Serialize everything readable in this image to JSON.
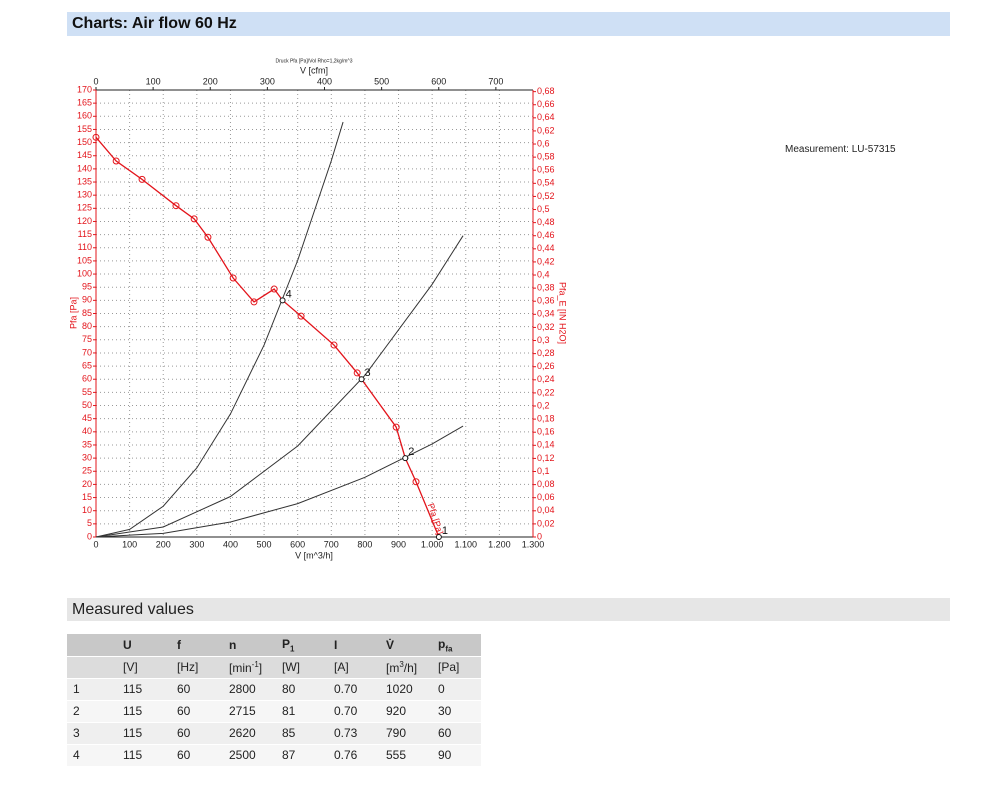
{
  "header": {
    "title": "Charts: Air flow 60 Hz"
  },
  "measurement": "Measurement: LU-57315",
  "chart_data": {
    "type": "line",
    "title": "Druck Pfa [Pa]/Vol Rho=1,2kg/m^3",
    "x_label": "V [m^3/h]",
    "x2_label": "V [cfm]",
    "y_label": "Pfa [Pa]",
    "y2_label": "Pfa_E [IN H2O]",
    "xlim": [
      0,
      1300
    ],
    "xticks": [
      0,
      100,
      200,
      300,
      400,
      500,
      600,
      700,
      800,
      900,
      {
        "value": 1000,
        "label": "1.000"
      },
      {
        "value": 1100,
        "label": "1.100"
      },
      {
        "value": 1200,
        "label": "1.200"
      },
      {
        "value": 1300,
        "label": "1.300"
      }
    ],
    "x2lim": [
      0,
      765
    ],
    "x2ticks": [
      0,
      100,
      200,
      300,
      400,
      500,
      600,
      700
    ],
    "ylim": [
      0,
      170
    ],
    "yticks": [
      0,
      5,
      10,
      15,
      20,
      25,
      30,
      35,
      40,
      45,
      50,
      55,
      60,
      65,
      70,
      75,
      80,
      85,
      90,
      95,
      100,
      105,
      110,
      115,
      120,
      125,
      130,
      135,
      140,
      145,
      150,
      155,
      160,
      165,
      170
    ],
    "y2lim": [
      0,
      0.6825
    ],
    "y2ticks": [
      0,
      {
        "value": 0.02,
        "label": "0,02"
      },
      {
        "value": 0.04,
        "label": "0,04"
      },
      {
        "value": 0.06,
        "label": "0,06"
      },
      {
        "value": 0.08,
        "label": "0,08"
      },
      {
        "value": 0.1,
        "label": "0,1"
      },
      {
        "value": 0.12,
        "label": "0,12"
      },
      {
        "value": 0.14,
        "label": "0,14"
      },
      {
        "value": 0.16,
        "label": "0,16"
      },
      {
        "value": 0.18,
        "label": "0,18"
      },
      {
        "value": 0.2,
        "label": "0,2"
      },
      {
        "value": 0.22,
        "label": "0,22"
      },
      {
        "value": 0.24,
        "label": "0,24"
      },
      {
        "value": 0.26,
        "label": "0,26"
      },
      {
        "value": 0.28,
        "label": "0,28"
      },
      {
        "value": 0.3,
        "label": "0,3"
      },
      {
        "value": 0.32,
        "label": "0,32"
      },
      {
        "value": 0.34,
        "label": "0,34"
      },
      {
        "value": 0.36,
        "label": "0,36"
      },
      {
        "value": 0.38,
        "label": "0,38"
      },
      {
        "value": 0.4,
        "label": "0,4"
      },
      {
        "value": 0.42,
        "label": "0,42"
      },
      {
        "value": 0.44,
        "label": "0,44"
      },
      {
        "value": 0.46,
        "label": "0,46"
      },
      {
        "value": 0.48,
        "label": "0,48"
      },
      {
        "value": 0.5,
        "label": "0,5"
      },
      {
        "value": 0.52,
        "label": "0,52"
      },
      {
        "value": 0.54,
        "label": "0,54"
      },
      {
        "value": 0.56,
        "label": "0,56"
      },
      {
        "value": 0.58,
        "label": "0,58"
      },
      {
        "value": 0.6,
        "label": "0,6"
      },
      {
        "value": 0.62,
        "label": "0,62"
      },
      {
        "value": 0.64,
        "label": "0,64"
      },
      {
        "value": 0.66,
        "label": "0,66"
      },
      {
        "value": 0.68,
        "label": "0,68"
      }
    ],
    "grid": true,
    "series": [
      {
        "name": "Pfa [Pa]",
        "color": "#e3141b",
        "markers": true,
        "x": [
          0,
          60,
          137,
          238,
          292,
          333,
          408,
          470,
          530,
          555,
          610,
          708,
          777,
          790,
          893,
          920,
          952,
          1020
        ],
        "values": [
          152,
          143,
          136,
          126,
          121,
          114,
          98.5,
          89.4,
          94.3,
          90,
          84,
          73,
          62.4,
          60,
          41.8,
          30,
          21,
          0
        ],
        "marked": [
          true,
          true,
          true,
          true,
          true,
          true,
          true,
          true,
          true,
          false,
          true,
          true,
          true,
          false,
          true,
          false,
          true,
          false
        ]
      },
      {
        "color": "#333333",
        "markers": false,
        "x": [
          0,
          100,
          200,
          300,
          400,
          500,
          600,
          700,
          735
        ],
        "values": [
          0,
          2.9,
          11.7,
          26.3,
          46.8,
          73,
          105.2,
          143.1,
          157.8
        ]
      },
      {
        "color": "#333333",
        "markers": false,
        "x": [
          0,
          200,
          400,
          600,
          800,
          1000,
          1092
        ],
        "values": [
          0,
          3.8,
          15.4,
          34.6,
          61.5,
          96.1,
          114.6
        ]
      },
      {
        "color": "#333333",
        "markers": false,
        "x": [
          0,
          200,
          400,
          600,
          800,
          1000,
          1092
        ],
        "values": [
          0,
          1.4,
          5.7,
          12.7,
          22.7,
          35.4,
          42.2
        ]
      }
    ],
    "points": {
      "x": [
        555,
        790,
        920,
        1020
      ],
      "values": [
        90,
        60,
        30,
        0
      ],
      "labels": [
        "4",
        "3",
        "2",
        "1"
      ]
    }
  },
  "section": {
    "title": "Measured values"
  },
  "table": {
    "header": [
      {
        "text": "U"
      },
      {
        "text": "f"
      },
      {
        "text": "n"
      },
      {
        "text": "P",
        "sub": "1"
      },
      {
        "text": "I"
      },
      {
        "text": "V̇"
      },
      {
        "text": "p",
        "sub": "fa"
      }
    ],
    "units": [
      {
        "text": "[V]"
      },
      {
        "text": "[Hz]"
      },
      {
        "text": "[min",
        "sup": "-1",
        "tail": "]"
      },
      {
        "text": "[W]"
      },
      {
        "text": "[A]"
      },
      {
        "text": "[m",
        "sup": "3",
        "tail": "/h]"
      },
      {
        "text": "[Pa]"
      }
    ],
    "rows": [
      {
        "id": "1",
        "cells": [
          "115",
          "60",
          "2800",
          "80",
          "0.70",
          "1020",
          "0"
        ]
      },
      {
        "id": "2",
        "cells": [
          "115",
          "60",
          "2715",
          "81",
          "0.70",
          "920",
          "30"
        ]
      },
      {
        "id": "3",
        "cells": [
          "115",
          "60",
          "2620",
          "85",
          "0.73",
          "790",
          "60"
        ]
      },
      {
        "id": "4",
        "cells": [
          "115",
          "60",
          "2500",
          "87",
          "0.76",
          "555",
          "90"
        ]
      }
    ]
  }
}
